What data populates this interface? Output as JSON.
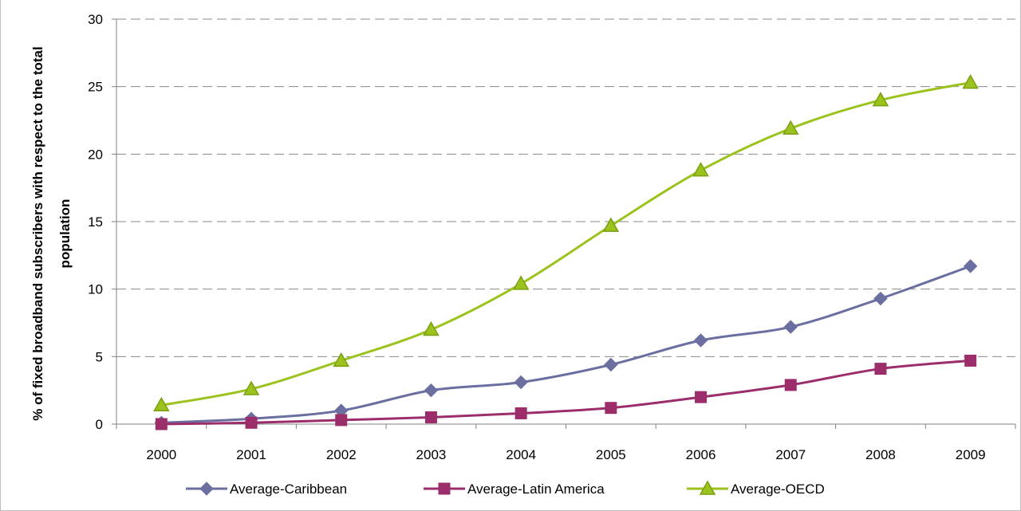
{
  "chart_data": {
    "type": "line",
    "title": "",
    "xlabel": "",
    "ylabel_lines": [
      "% of fixed broadband subscribers with respect to the total",
      "population"
    ],
    "ylim": [
      0,
      30
    ],
    "yticks": [
      0,
      5,
      10,
      15,
      20,
      25,
      30
    ],
    "grid": "horizontal dashed",
    "legend_position": "bottom",
    "x": [
      "2000",
      "2001",
      "2002",
      "2003",
      "2004",
      "2005",
      "2006",
      "2007",
      "2008",
      "2009"
    ],
    "series": [
      {
        "name": "Average-Caribbean",
        "color": "#6b6fa0",
        "marker": "diamond",
        "values": [
          0.1,
          0.4,
          1.0,
          2.5,
          3.1,
          4.4,
          6.2,
          7.2,
          9.3,
          11.7
        ]
      },
      {
        "name": "Average-Latin America",
        "color": "#9b2e6a",
        "marker": "square",
        "values": [
          0.0,
          0.1,
          0.3,
          0.5,
          0.8,
          1.2,
          2.0,
          2.9,
          4.1,
          4.7
        ]
      },
      {
        "name": "Average-OECD",
        "color": "#9cc21e",
        "marker": "triangle",
        "values": [
          1.4,
          2.6,
          4.7,
          7.0,
          10.4,
          14.7,
          18.8,
          21.9,
          24.0,
          25.3
        ]
      }
    ]
  }
}
